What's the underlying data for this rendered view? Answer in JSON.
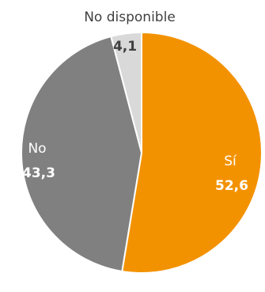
{
  "chart_data": {
    "type": "pie",
    "slices": [
      {
        "name": "Sí",
        "value": 52.6,
        "display": "52,6",
        "color": "#F39200"
      },
      {
        "name": "No",
        "value": 43.3,
        "display": "43,3",
        "color": "#808080"
      },
      {
        "name": "No disponible",
        "value": 4.1,
        "display": "4,1",
        "color": "#D9D9D9"
      }
    ],
    "legend": "none",
    "data_labels": "on slices"
  }
}
